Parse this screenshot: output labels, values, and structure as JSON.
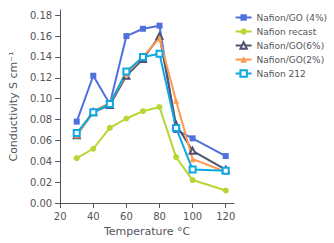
{
  "chart_data": {
    "type": "line",
    "x": [
      30,
      40,
      50,
      60,
      70,
      80,
      90,
      100,
      120
    ],
    "series": [
      {
        "name": "Nafion/GO (4%)",
        "marker": "square",
        "values": [
          0.078,
          0.122,
          0.095,
          0.16,
          0.167,
          0.17,
          0.07,
          0.062,
          0.045
        ]
      },
      {
        "name": "Nafion recast",
        "marker": "circle",
        "values": [
          0.043,
          0.052,
          0.072,
          0.081,
          0.088,
          0.092,
          0.044,
          0.022,
          0.012
        ]
      },
      {
        "name": "Nafion/GO(6%)",
        "marker": "triangle-open",
        "values": [
          0.065,
          0.087,
          0.094,
          0.122,
          0.138,
          0.16,
          0.075,
          0.05,
          0.032
        ]
      },
      {
        "name": "Nafion/GO(2%)",
        "marker": "triangle",
        "values": [
          0.065,
          0.088,
          0.096,
          0.124,
          0.14,
          0.158,
          0.098,
          0.042,
          0.03
        ]
      },
      {
        "name": "Nafion 212",
        "marker": "square-open",
        "values": [
          0.067,
          0.087,
          0.095,
          0.126,
          0.14,
          0.143,
          0.072,
          0.032,
          0.031
        ]
      }
    ],
    "xlabel": "Temperature °C",
    "ylabel": "Conductivity S cm⁻¹",
    "xlim": [
      20,
      125
    ],
    "ylim": [
      0,
      0.185
    ],
    "xticks": [
      20,
      40,
      60,
      80,
      100,
      120
    ],
    "yticks": [
      {
        "value": 0,
        "label": "0.00"
      },
      0.02,
      0.04,
      0.06,
      0.08,
      {
        "value": 0.1,
        "label": "0.10"
      },
      0.12,
      0.14,
      0.16,
      0.18
    ],
    "grid": false,
    "legend": "upper right"
  }
}
